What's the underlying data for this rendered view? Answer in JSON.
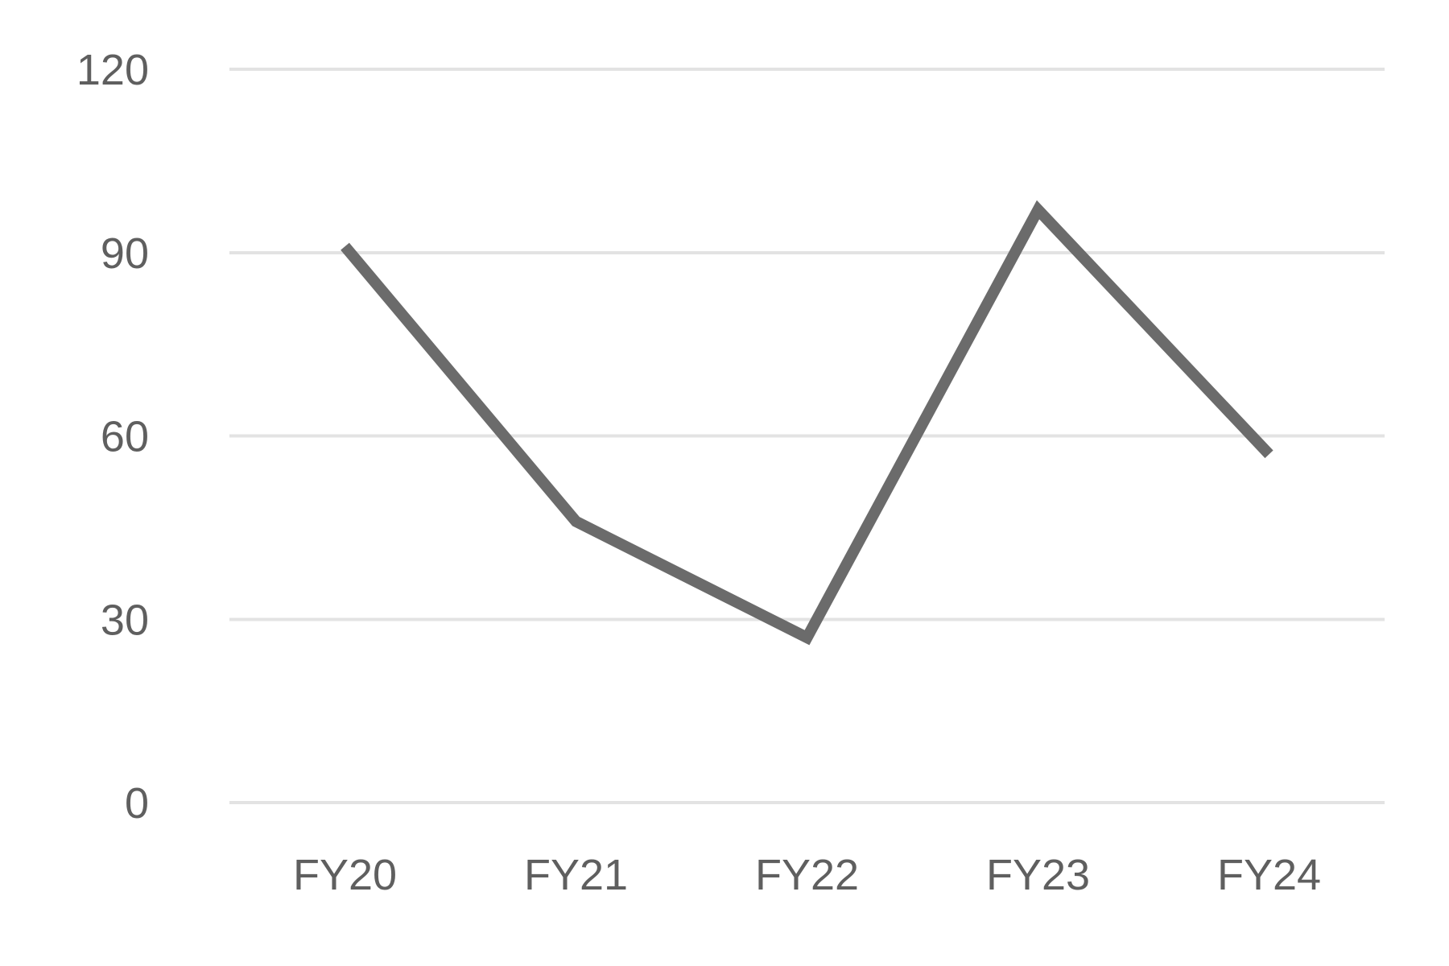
{
  "chart_data": {
    "type": "line",
    "categories": [
      "FY20",
      "FY21",
      "FY22",
      "FY23",
      "FY24"
    ],
    "series": [
      {
        "values": [
          91,
          46,
          27,
          97,
          57
        ]
      }
    ],
    "ylim": [
      0,
      120
    ],
    "yticks": [
      0,
      30,
      60,
      90,
      120
    ],
    "ytick_labels": [
      "0",
      "30",
      "60",
      "90",
      "120"
    ],
    "grid": true,
    "legend": "none",
    "colors": {
      "series": "#6b6b6b",
      "grid": "#e3e3e3",
      "text": "#5f5f5f"
    }
  }
}
